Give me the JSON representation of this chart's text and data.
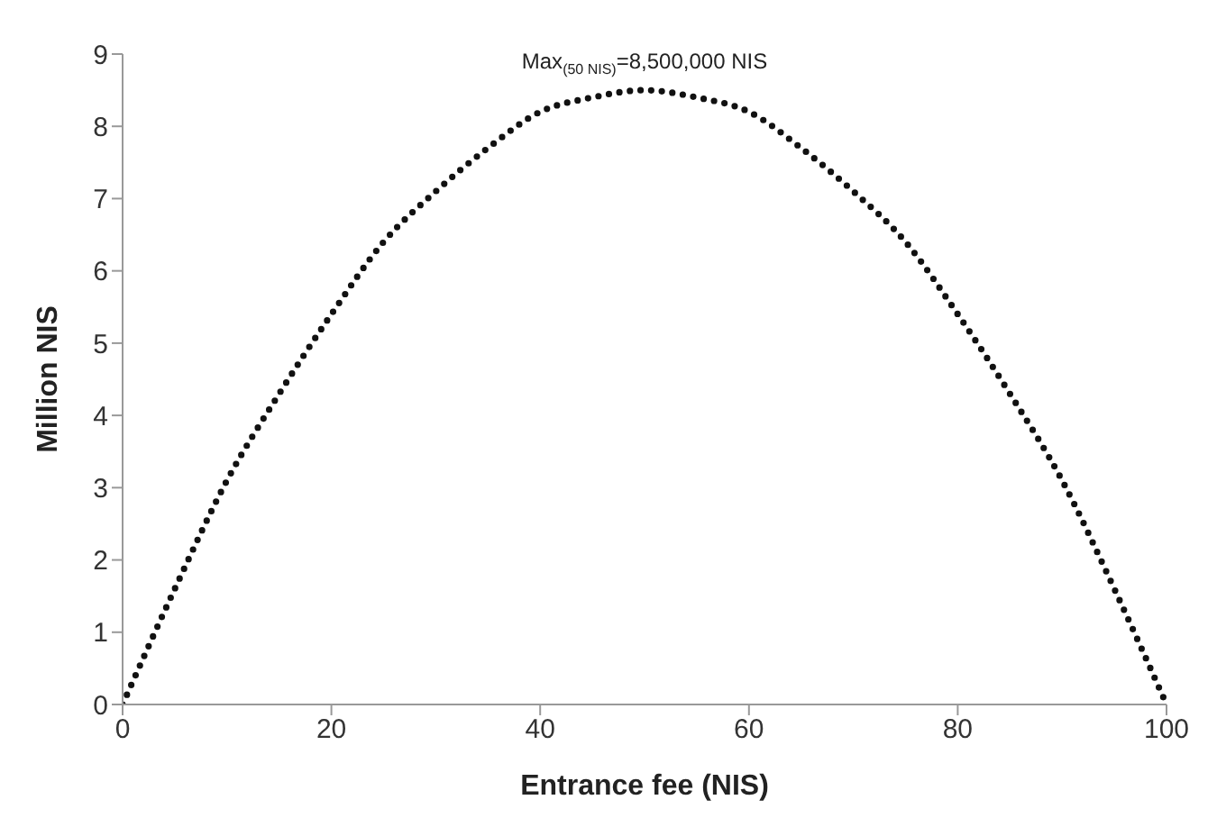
{
  "chart_data": {
    "type": "line",
    "xlabel": "Entrance fee (NIS)",
    "ylabel": "Million NIS",
    "x": [
      0,
      5,
      10,
      15,
      20,
      25,
      30,
      35,
      40,
      45,
      50,
      55,
      60,
      65,
      70,
      75,
      80,
      85,
      90,
      95,
      100
    ],
    "series": [
      {
        "color": "#111111",
        "values": [
          0,
          1.6,
          3.1,
          4.3,
          5.4,
          6.4,
          7.1,
          7.7,
          8.2,
          8.4,
          8.5,
          8.4,
          8.2,
          7.7,
          7.1,
          6.4,
          5.4,
          4.3,
          3.1,
          1.6,
          0
        ]
      }
    ],
    "xlim": [
      0,
      100
    ],
    "xticks": [
      0,
      20,
      40,
      60,
      80,
      100
    ],
    "ylim": [
      0,
      9
    ],
    "yticks": [
      0,
      1,
      2,
      3,
      4,
      5,
      6,
      7,
      8,
      9
    ],
    "grid": false,
    "legend": false,
    "marker": "none",
    "line_style": "dotted",
    "annotations": [
      {
        "text": "Max$_{(50 NIS)}$=8,500,000 NIS",
        "x": 50,
        "y": 8.5
      }
    ]
  }
}
